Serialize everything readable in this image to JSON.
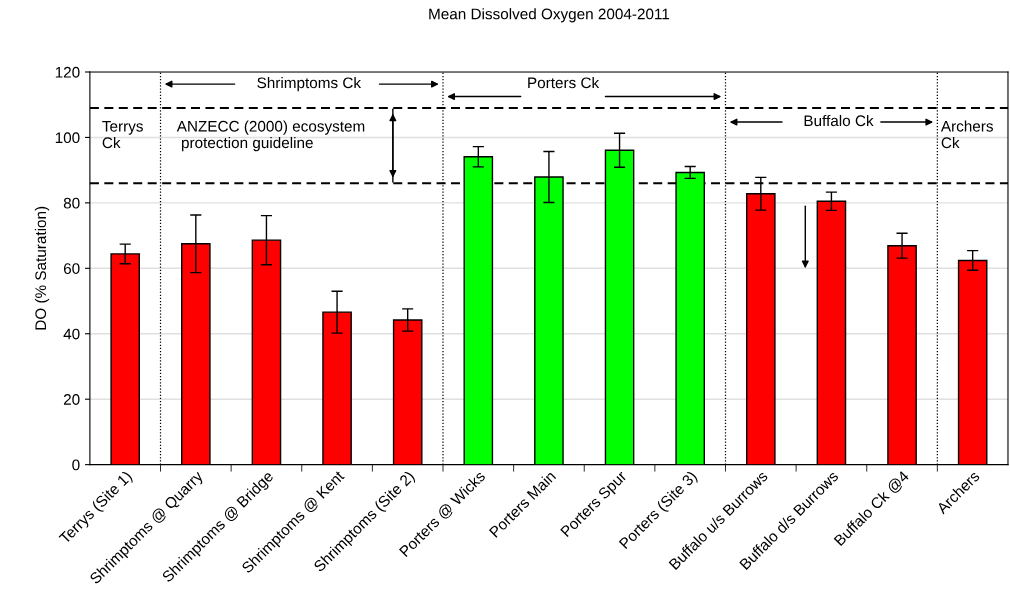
{
  "chart_data": {
    "type": "bar",
    "title": "Mean Dissolved Oxygen 2004-2011",
    "ylabel": "DO (% Saturation)",
    "categories": [
      "Terrys (Site 1)",
      "Shrimptoms @ Quarry",
      "Shrimptoms @ Bridge",
      "Shrimptoms @ Kent",
      "Shrimptoms (Site 2)",
      "Porters @ Wicks",
      "Porters Main",
      "Porters Spur",
      "Porters (Site 3)",
      "Buffalo u/s Burrows",
      "Buffalo d/s Burrows",
      "Buffalo Ck @4",
      "Archers"
    ],
    "values": [
      64.4,
      67.5,
      68.6,
      46.6,
      44.2,
      94.1,
      87.9,
      96.1,
      89.3,
      82.8,
      80.5,
      66.9,
      62.4
    ],
    "errors": [
      3,
      8.8,
      7.5,
      6.4,
      3.4,
      3.1,
      7.8,
      5.2,
      1.8,
      5,
      2.8,
      3.8,
      3
    ],
    "colors": [
      "#ff0000",
      "#ff0000",
      "#ff0000",
      "#ff0000",
      "#ff0000",
      "#00ff00",
      "#00ff00",
      "#00ff00",
      "#00ff00",
      "#ff0000",
      "#ff0000",
      "#ff0000",
      "#ff0000"
    ],
    "ylim": [
      0,
      120
    ],
    "yticks": [
      0,
      20,
      40,
      60,
      80,
      100,
      120
    ],
    "grid": "y",
    "legend": false,
    "ref_lines": [
      {
        "axis": "y",
        "value": 109,
        "color": "#000000",
        "line_style": "dashed"
      },
      {
        "axis": "y",
        "value": 86,
        "color": "#000000",
        "line_style": "dashed"
      }
    ],
    "annotations": [
      "Terrys\nCk",
      "ANZECC (2000) ecosystem\n protection guideline",
      "Shrimptoms Ck",
      "Porters Ck",
      "Buffalo Ck",
      "Archers\nCk"
    ]
  }
}
